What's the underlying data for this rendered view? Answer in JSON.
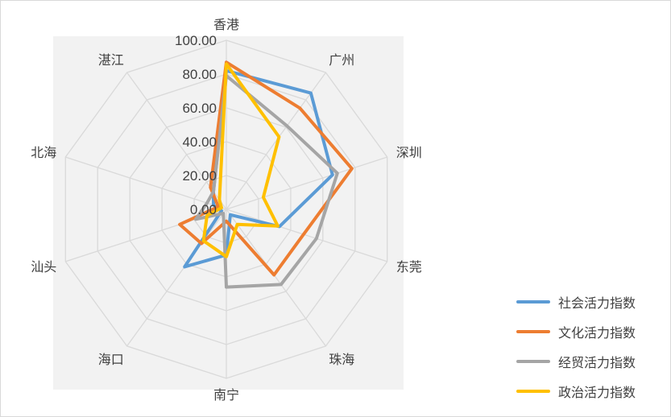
{
  "chart_data": {
    "type": "radar",
    "title": "",
    "categories": [
      "香港",
      "广州",
      "深圳",
      "东莞",
      "珠海",
      "南宁",
      "海口",
      "汕头",
      "北海",
      "湛江"
    ],
    "r_ticks": [
      "0.00",
      "20.00",
      "40.00",
      "60.00",
      "80.00",
      "100.00"
    ],
    "rlim": [
      0,
      100
    ],
    "grid": true,
    "legend_position": "bottom-right",
    "series": [
      {
        "name": "社会活力指数",
        "color": "#5b9bd5",
        "values": [
          82,
          85,
          66,
          33,
          4,
          27,
          42,
          3,
          8,
          13
        ]
      },
      {
        "name": "文化活力指数",
        "color": "#ed7d31",
        "values": [
          87,
          74,
          78,
          48,
          48,
          7,
          25,
          29,
          5,
          16
        ]
      },
      {
        "name": "经贸活力指数",
        "color": "#a5a5a5",
        "values": [
          79,
          61,
          69,
          56,
          55,
          46,
          3,
          19,
          12,
          13
        ]
      },
      {
        "name": "政治活力指数",
        "color": "#ffc000",
        "values": [
          86,
          53,
          23,
          32,
          11,
          28,
          23,
          12,
          3,
          7
        ]
      }
    ]
  }
}
